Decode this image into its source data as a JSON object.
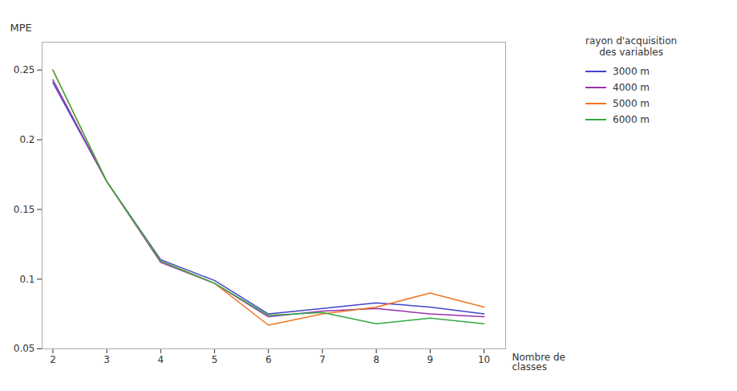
{
  "chart_data": {
    "type": "line",
    "x": [
      2,
      3,
      4,
      5,
      6,
      7,
      8,
      9,
      10
    ],
    "series": [
      {
        "name": "3000 m",
        "color": "#4444cc",
        "values": [
          0.241,
          0.17,
          0.114,
          0.099,
          0.075,
          0.079,
          0.083,
          0.08,
          0.075
        ]
      },
      {
        "name": "4000 m",
        "color": "#9933aa",
        "values": [
          0.243,
          0.17,
          0.112,
          0.097,
          0.073,
          0.077,
          0.079,
          0.075,
          0.073
        ]
      },
      {
        "name": "5000 m",
        "color": "#ee7722",
        "values": [
          0.25,
          0.17,
          0.113,
          0.097,
          0.067,
          0.075,
          0.08,
          0.09,
          0.08
        ]
      },
      {
        "name": "6000 m",
        "color": "#33aa44",
        "values": [
          0.25,
          0.17,
          0.113,
          0.097,
          0.074,
          0.076,
          0.068,
          0.072,
          0.068
        ]
      }
    ],
    "ylabel": "MPE",
    "xlabel": "Nombre de\nclasses",
    "legend_title": "rayon d'acquisition\ndes variables",
    "xlim": [
      1.8,
      10.4
    ],
    "xticks": [
      2,
      3,
      4,
      5,
      6,
      7,
      8,
      9,
      10
    ],
    "ylim": [
      0.05,
      0.27
    ],
    "yticks": [
      0.05,
      0.1,
      0.15,
      0.2,
      0.25
    ],
    "grid": false,
    "legend": "right"
  }
}
